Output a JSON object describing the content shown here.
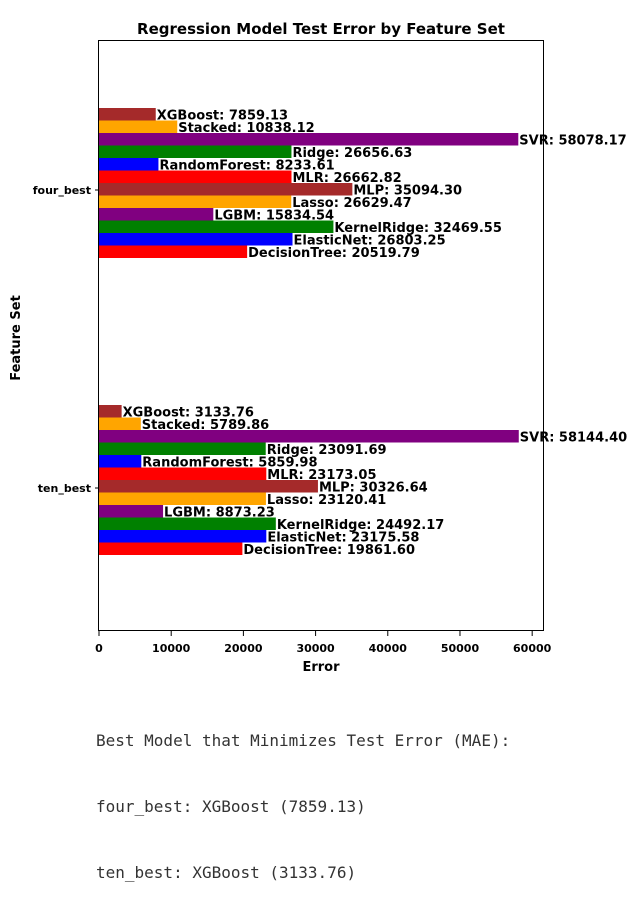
{
  "chart_data": {
    "type": "bar",
    "orientation": "horizontal",
    "title": "Regression Model Test Error by Feature Set",
    "xlabel": "Error",
    "ylabel": "Feature Set",
    "xlim": [
      0,
      61500
    ],
    "xticks": [
      0,
      10000,
      20000,
      30000,
      40000,
      50000,
      60000
    ],
    "grid": false,
    "legend": "none",
    "groups": [
      {
        "name": "four_best",
        "bars": [
          {
            "model": "DecisionTree",
            "value": 20519.79,
            "label": "DecisionTree: 20519.79",
            "color": "#ff0000"
          },
          {
            "model": "ElasticNet",
            "value": 26803.25,
            "label": "ElasticNet: 26803.25",
            "color": "#0000ff"
          },
          {
            "model": "KernelRidge",
            "value": 32469.55,
            "label": "KernelRidge: 32469.55",
            "color": "#008000"
          },
          {
            "model": "LGBM",
            "value": 15834.54,
            "label": "LGBM: 15834.54",
            "color": "#800080"
          },
          {
            "model": "Lasso",
            "value": 26629.47,
            "label": "Lasso: 26629.47",
            "color": "#ffa500"
          },
          {
            "model": "MLP",
            "value": 35094.3,
            "label": "MLP: 35094.30",
            "color": "#a52a2a"
          },
          {
            "model": "MLR",
            "value": 26662.82,
            "label": "MLR: 26662.82",
            "color": "#ff0000"
          },
          {
            "model": "RandomForest",
            "value": 8233.61,
            "label": "RandomForest: 8233.61",
            "color": "#0000ff"
          },
          {
            "model": "Ridge",
            "value": 26656.63,
            "label": "Ridge: 26656.63",
            "color": "#008000"
          },
          {
            "model": "SVR",
            "value": 58078.17,
            "label": "SVR: 58078.17",
            "color": "#800080"
          },
          {
            "model": "Stacked",
            "value": 10838.12,
            "label": "Stacked: 10838.12",
            "color": "#ffa500"
          },
          {
            "model": "XGBoost",
            "value": 7859.13,
            "label": "XGBoost: 7859.13",
            "color": "#a52a2a"
          }
        ]
      },
      {
        "name": "ten_best",
        "bars": [
          {
            "model": "DecisionTree",
            "value": 19861.6,
            "label": "DecisionTree: 19861.60",
            "color": "#ff0000"
          },
          {
            "model": "ElasticNet",
            "value": 23175.58,
            "label": "ElasticNet: 23175.58",
            "color": "#0000ff"
          },
          {
            "model": "KernelRidge",
            "value": 24492.17,
            "label": "KernelRidge: 24492.17",
            "color": "#008000"
          },
          {
            "model": "LGBM",
            "value": 8873.23,
            "label": "LGBM: 8873.23",
            "color": "#800080"
          },
          {
            "model": "Lasso",
            "value": 23120.41,
            "label": "Lasso: 23120.41",
            "color": "#ffa500"
          },
          {
            "model": "MLP",
            "value": 30326.64,
            "label": "MLP: 30326.64",
            "color": "#a52a2a"
          },
          {
            "model": "MLR",
            "value": 23173.05,
            "label": "MLR: 23173.05",
            "color": "#ff0000"
          },
          {
            "model": "RandomForest",
            "value": 5859.98,
            "label": "RandomForest: 5859.98",
            "color": "#0000ff"
          },
          {
            "model": "Ridge",
            "value": 23091.69,
            "label": "Ridge: 23091.69",
            "color": "#008000"
          },
          {
            "model": "SVR",
            "value": 58144.4,
            "label": "SVR: 58144.40",
            "color": "#800080"
          },
          {
            "model": "Stacked",
            "value": 5789.86,
            "label": "Stacked: 5789.86",
            "color": "#ffa500"
          },
          {
            "model": "XGBoost",
            "value": 3133.76,
            "label": "XGBoost: 3133.76",
            "color": "#a52a2a"
          }
        ]
      }
    ]
  },
  "console_output": {
    "lines": [
      "Best Model that Minimizes Test Error (MAE):",
      "four_best: XGBoost (7859.13)",
      "ten_best: XGBoost (3133.76)"
    ]
  }
}
